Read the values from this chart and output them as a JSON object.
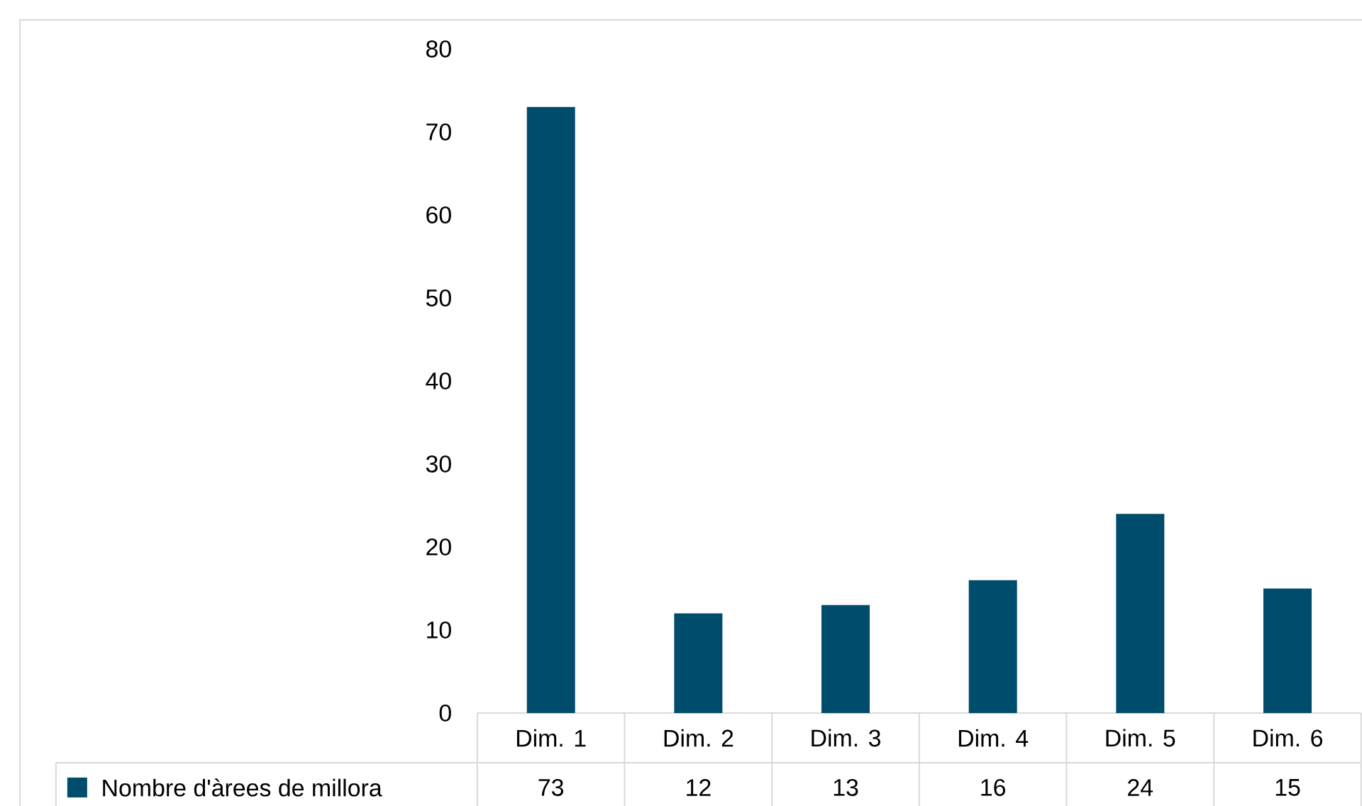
{
  "chart_data": {
    "type": "bar",
    "categories": [
      "Dim. 1",
      "Dim. 2",
      "Dim. 3",
      "Dim. 4",
      "Dim. 5",
      "Dim. 6"
    ],
    "series": [
      {
        "name": "Nombre d'àrees de millora",
        "color": "#004c6d",
        "values": [
          73,
          12,
          13,
          16,
          24,
          15
        ]
      }
    ],
    "ylim": [
      0,
      80
    ],
    "yticks": [
      0,
      10,
      20,
      30,
      40,
      50,
      60,
      70,
      80
    ],
    "data_labels": true,
    "legend": "bottom left"
  }
}
